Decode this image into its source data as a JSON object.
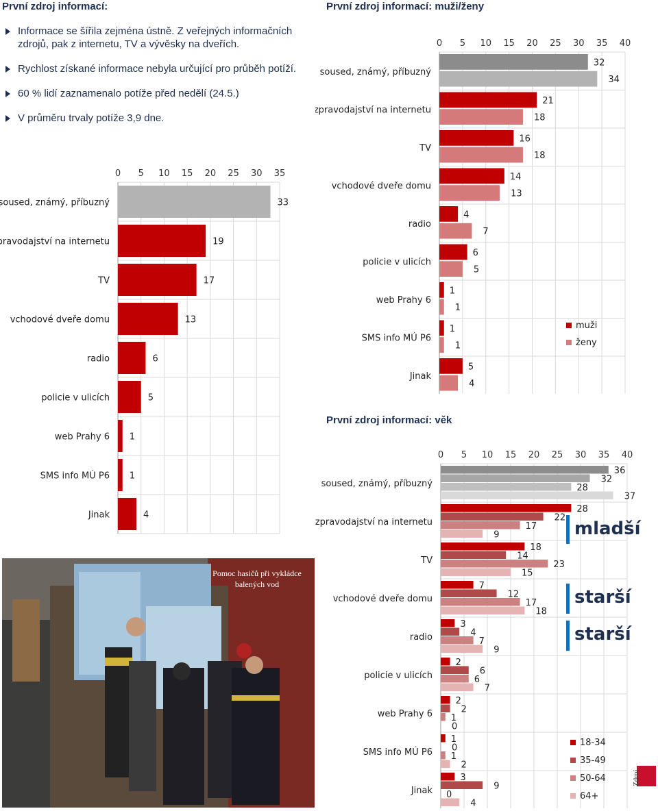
{
  "left": {
    "title": "První zdroj informací:",
    "bullets": [
      "Informace se šířila zejména ústně. Z veřejných informačních zdrojů, pak z internetu, TV a vývěsky na dveřích.",
      "Rychlost získané informace nebyla určující pro průběh potíží.",
      "60 % lidí zaznamenalo potíže před nedělí (24.5.)",
      "V průměru trvaly potíže 3,9 dne."
    ]
  },
  "gender_title": "První zdroj informací: muži/ženy",
  "age_title": "První zdroj informací: věk",
  "photo": {
    "caption": "Pomoc hasičů při vykládce balených vod"
  },
  "age_tags": {
    "younger": "mladší",
    "older_1": "starší",
    "older_2": "starší"
  },
  "footer": {
    "zdroj": "Zdroj"
  },
  "colors": {
    "red": "#c00000",
    "gray": "#b3b3b3",
    "dark_gray": "#8c8c8c",
    "pink": "#d47a7a",
    "blue": "#1a6fb3",
    "navy": "#1f2f4f"
  },
  "chart_data": [
    {
      "id": "overall",
      "type": "bar",
      "orientation": "horizontal",
      "categories": [
        "soused, známý, příbuzný",
        "zpravodajství na internetu",
        "TV",
        "vchodové dveře domu",
        "radio",
        "policie v ulicích",
        "web Prahy 6",
        "SMS info MÚ P6",
        "Jinak"
      ],
      "values": [
        33,
        19,
        17,
        13,
        6,
        5,
        1,
        1,
        4
      ],
      "xlim": [
        0,
        35
      ],
      "ticks": [
        0,
        5,
        10,
        15,
        20,
        25,
        30,
        35
      ],
      "grid": true
    },
    {
      "id": "gender",
      "type": "bar",
      "orientation": "horizontal",
      "categories": [
        "soused, známý, příbuzný",
        "zpravodajství na internetu",
        "TV",
        "vchodové dveře domu",
        "radio",
        "policie v ulicích",
        "web Prahy 6",
        "SMS info MÚ P6",
        "Jinak"
      ],
      "series": [
        {
          "name": "muži",
          "values": [
            32,
            21,
            16,
            14,
            4,
            6,
            1,
            1,
            5
          ]
        },
        {
          "name": "ženy",
          "values": [
            34,
            18,
            18,
            13,
            7,
            5,
            1,
            1,
            4
          ]
        }
      ],
      "xlim": [
        0,
        40
      ],
      "ticks": [
        0,
        5,
        10,
        15,
        20,
        25,
        30,
        35,
        40
      ],
      "legend": "right",
      "grid": true
    },
    {
      "id": "age",
      "type": "bar",
      "orientation": "horizontal",
      "categories": [
        "soused, známý, příbuzný",
        "zpravodajství na internetu",
        "TV",
        "vchodové dveře domu",
        "radio",
        "policie v ulicích",
        "web Prahy 6",
        "SMS info MÚ P6",
        "Jinak"
      ],
      "series": [
        {
          "name": "18-34",
          "values": [
            36,
            28,
            18,
            7,
            3,
            2,
            2,
            1,
            3
          ]
        },
        {
          "name": "35-49",
          "values": [
            32,
            22,
            14,
            12,
            4,
            6,
            2,
            0,
            9
          ]
        },
        {
          "name": "50-64",
          "values": [
            28,
            17,
            23,
            17,
            7,
            6,
            1,
            1,
            0
          ]
        },
        {
          "name": "64+",
          "values": [
            37,
            9,
            15,
            18,
            9,
            7,
            0,
            2,
            4
          ]
        }
      ],
      "xlim": [
        0,
        40
      ],
      "ticks": [
        0,
        5,
        10,
        15,
        20,
        25,
        30,
        35,
        40
      ],
      "legend": "bottom-right",
      "grid": true
    }
  ]
}
